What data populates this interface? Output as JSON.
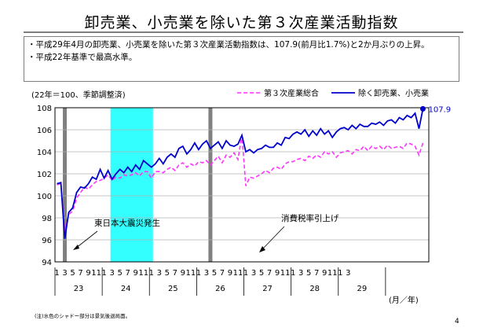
{
  "slide": {
    "title": "卸売業、小売業を除いた第３次産業活動指数",
    "bullets": [
      "・平成29年4月の卸売業、小売業を除いた第３次産業活動指数は、107.9(前月比1.7%)と2か月ぶりの上昇。",
      "・平成22年基準で最高水準。"
    ],
    "footnote": "(注)水色のシャドー部分は景気後退局面。",
    "page_number": "4"
  },
  "chart_data": {
    "type": "line",
    "unit_label": "(22年＝100、季節調整済)",
    "axis_unit_label": "(月／年)",
    "ylim": [
      94,
      108
    ],
    "yticks": [
      94,
      96,
      98,
      100,
      102,
      104,
      106,
      108
    ],
    "x_month_labels": [
      "1",
      "3",
      "5",
      "7",
      "9",
      "11",
      "1",
      "3",
      "5",
      "7",
      "9",
      "11",
      "1",
      "3",
      "5",
      "7",
      "9",
      "11",
      "1",
      "3",
      "5",
      "7",
      "9",
      "11",
      "1",
      "3",
      "5",
      "7",
      "9",
      "11",
      "1",
      "3",
      "5",
      "7",
      "9",
      "11",
      "1",
      "3"
    ],
    "x_year_labels": [
      "23",
      "24",
      "25",
      "26",
      "27",
      "28",
      "29"
    ],
    "grid": "horizontal",
    "legend_position": "top-right",
    "colors": {
      "total": "#ff33ff",
      "excl": "#0000cc",
      "shade": "#33ffff",
      "gray_bar": "#808080"
    },
    "annotations": {
      "earthquake": "東日本大震災発生",
      "tax": "消費税率引上げ",
      "last_value": "107.9"
    },
    "series": [
      {
        "name": "第３次産業総合",
        "key": "total",
        "values": [
          101.0,
          101.1,
          96.8,
          98.3,
          98.6,
          99.8,
          100.3,
          100.8,
          100.6,
          101.0,
          101.3,
          101.4,
          101.6,
          101.9,
          101.4,
          101.7,
          101.6,
          101.9,
          101.8,
          101.9,
          102.1,
          101.8,
          102.2,
          102.2,
          101.6,
          102.2,
          102.2,
          102.1,
          102.4,
          102.6,
          102.3,
          102.8,
          103.0,
          102.6,
          102.9,
          102.7,
          103.1,
          103.0,
          103.2,
          102.8,
          103.2,
          103.6,
          103.0,
          103.7,
          103.5,
          103.9,
          103.3,
          105.5,
          100.9,
          101.7,
          101.6,
          101.8,
          102.0,
          102.3,
          102.1,
          102.5,
          102.6,
          102.4,
          102.9,
          103.1,
          103.1,
          103.3,
          103.4,
          103.2,
          103.6,
          103.4,
          103.7,
          103.5,
          104.0,
          103.8,
          104.0,
          103.5,
          103.9,
          104.0,
          104.1,
          103.8,
          104.2,
          104.1,
          104.5,
          104.1,
          104.5,
          104.3,
          104.5,
          104.2,
          104.6,
          104.3,
          104.4,
          104.5,
          104.3,
          104.8,
          104.7,
          104.5,
          103.7,
          104.8
        ]
      },
      {
        "name": "除く卸売業、小売業",
        "key": "excl",
        "values": [
          101.1,
          101.2,
          96.1,
          98.5,
          98.9,
          100.3,
          100.8,
          100.7,
          101.1,
          101.7,
          101.5,
          102.4,
          101.6,
          102.3,
          101.5,
          102.0,
          102.4,
          102.1,
          102.6,
          102.2,
          102.8,
          102.4,
          103.2,
          102.9,
          102.6,
          102.9,
          103.4,
          102.9,
          103.5,
          103.8,
          103.5,
          104.3,
          104.5,
          103.8,
          104.2,
          104.8,
          104.2,
          104.7,
          105.0,
          104.3,
          104.6,
          104.9,
          104.3,
          105.0,
          104.6,
          104.5,
          104.7,
          105.5,
          104.0,
          104.2,
          103.9,
          104.2,
          104.3,
          104.6,
          104.4,
          104.4,
          104.8,
          104.6,
          105.3,
          105.2,
          105.6,
          105.8,
          105.6,
          106.0,
          105.4,
          105.9,
          105.5,
          106.1,
          105.6,
          105.9,
          105.3,
          105.8,
          106.1,
          106.2,
          106.0,
          106.4,
          106.1,
          106.5,
          106.3,
          106.3,
          106.6,
          106.5,
          106.7,
          106.4,
          106.8,
          106.9,
          106.6,
          107.1,
          106.9,
          107.3,
          107.1,
          107.5,
          106.1,
          107.9
        ]
      }
    ]
  }
}
